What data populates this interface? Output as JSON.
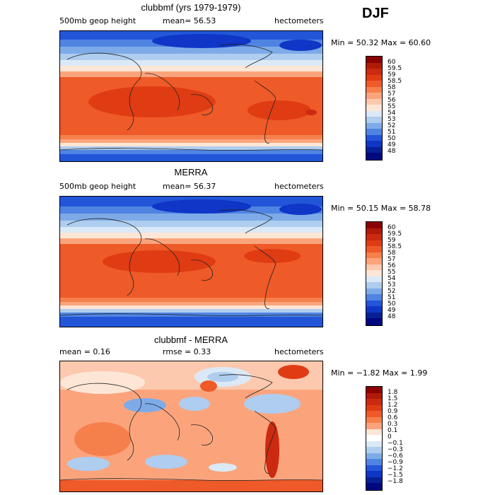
{
  "season": "DJF",
  "panels": [
    {
      "title": "clubbmf (yrs 1979-1979)",
      "left_label": "500mb geop height",
      "center_label": "mean=  56.53",
      "right_label": "hectometers",
      "minmax": "Min =  50.32 Max =  60.60",
      "type": "field"
    },
    {
      "title": "MERRA",
      "left_label": "500mb geop height",
      "center_label": "mean=  56.37",
      "right_label": "hectometers",
      "minmax": "Min =  50.15 Max =  58.78",
      "type": "field"
    },
    {
      "title": "clubbmf - MERRA",
      "left_label": "mean =   0.16",
      "center_label": "rmse =   0.33",
      "right_label": "hectometers",
      "minmax": "Min =  −1.82 Max =   1.99",
      "type": "diff"
    }
  ],
  "colorbars": {
    "field": {
      "labels": [
        "60",
        "59.5",
        "59",
        "58.5",
        "58",
        "57",
        "56",
        "55",
        "54",
        "53",
        "52",
        "51",
        "50",
        "49",
        "48"
      ],
      "colors": [
        "#8b0000",
        "#b01a08",
        "#cc2a10",
        "#e03c14",
        "#ee5a28",
        "#f6804c",
        "#fba47c",
        "#fdc9ae",
        "#fde6d6",
        "#dbe9f6",
        "#aecdef",
        "#7eabe8",
        "#4f84e2",
        "#2255d8",
        "#0f36c6",
        "#082096",
        "#000880"
      ]
    },
    "diff": {
      "labels": [
        "1.8",
        "1.5",
        "1.2",
        "0.9",
        "0.6",
        "0.3",
        "0.1",
        "0",
        "−0.1",
        "−0.3",
        "−0.6",
        "−0.9",
        "−1.2",
        "−1.5",
        "−1.8"
      ],
      "colors": [
        "#8b0000",
        "#b01a08",
        "#cc2a10",
        "#e03c14",
        "#ee5a28",
        "#f6804c",
        "#fba47c",
        "#fde6d6",
        "#ffffff",
        "#dbe9f6",
        "#aecdef",
        "#7eabe8",
        "#4f84e2",
        "#2255d8",
        "#0f36c6",
        "#082096",
        "#000880"
      ]
    }
  }
}
